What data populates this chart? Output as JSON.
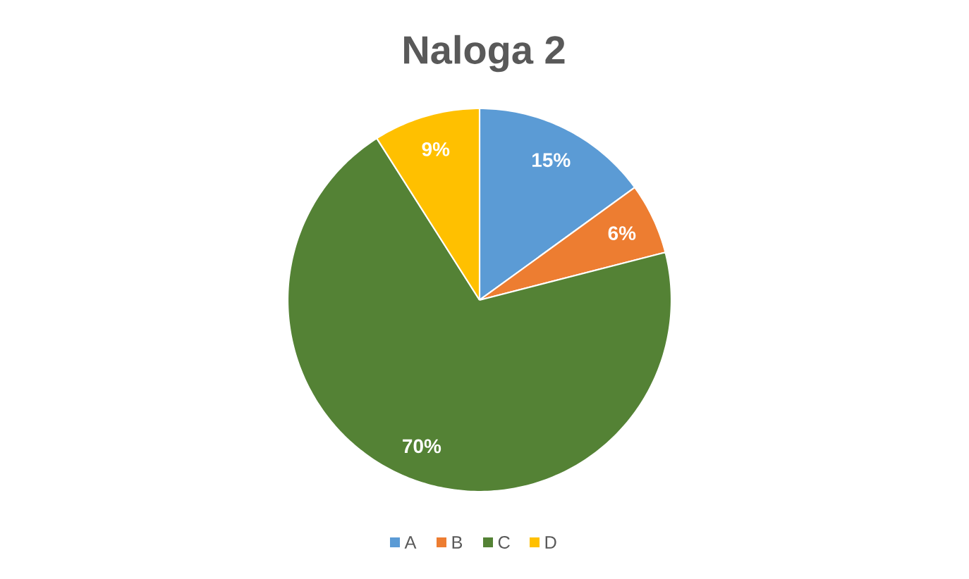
{
  "chart_data": {
    "type": "pie",
    "title": "Naloga 2",
    "categories": [
      "A",
      "B",
      "C",
      "D"
    ],
    "values": [
      15,
      6,
      70,
      9
    ],
    "colors": [
      "#5b9bd5",
      "#ed7d31",
      "#548235",
      "#ffc000"
    ],
    "value_labels": [
      "15%",
      "6%",
      "70%",
      "9%"
    ],
    "legend": "bottom"
  }
}
